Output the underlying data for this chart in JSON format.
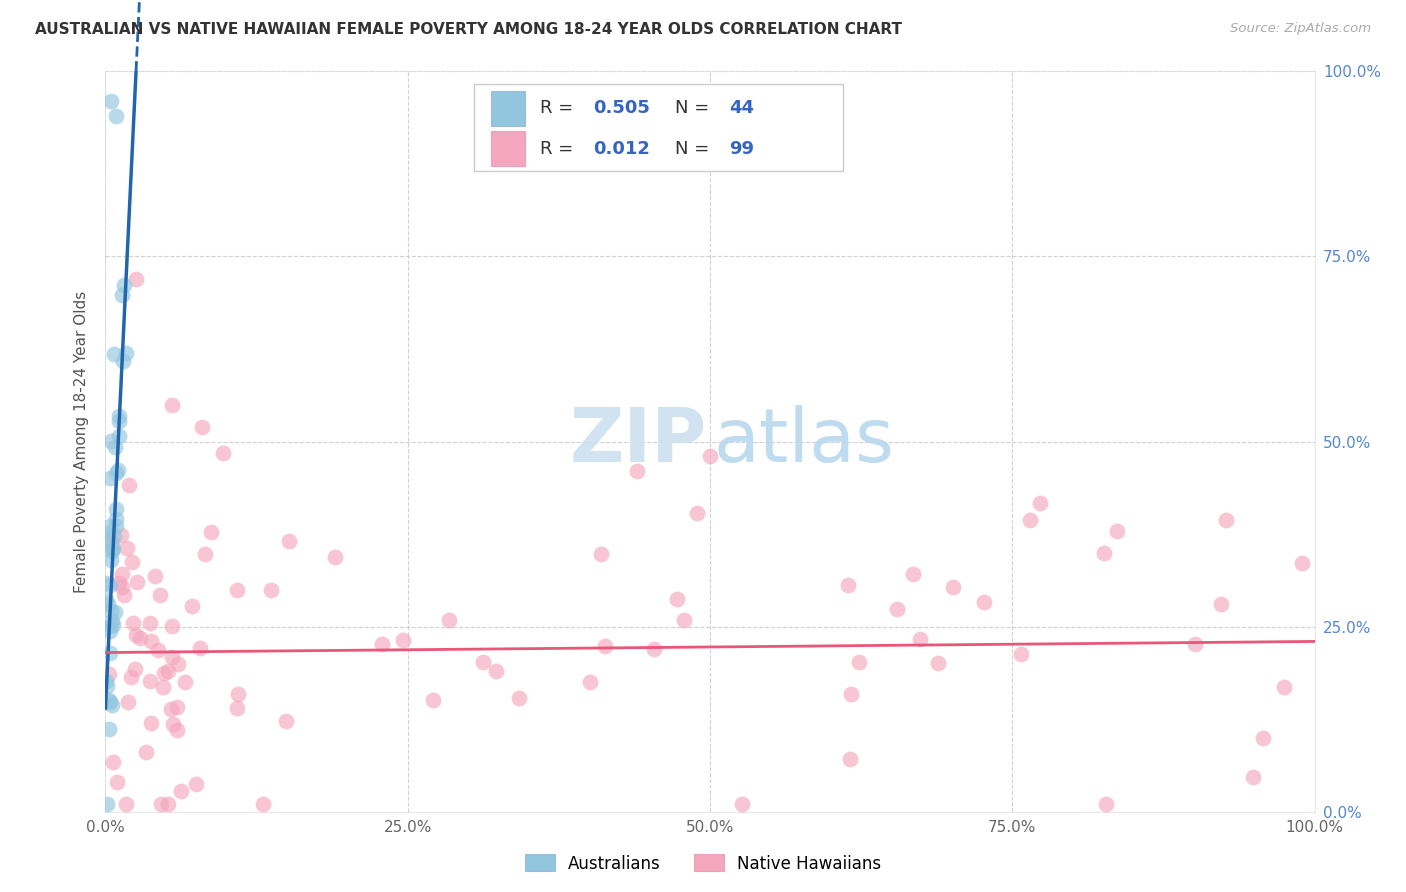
{
  "title": "AUSTRALIAN VS NATIVE HAWAIIAN FEMALE POVERTY AMONG 18-24 YEAR OLDS CORRELATION CHART",
  "source": "Source: ZipAtlas.com",
  "ylabel": "Female Poverty Among 18-24 Year Olds",
  "xlim": [
    0,
    1.0
  ],
  "ylim": [
    0,
    1.0
  ],
  "xticks": [
    0.0,
    0.25,
    0.5,
    0.75,
    1.0
  ],
  "xticklabels": [
    "0.0%",
    "25.0%",
    "50.0%",
    "75.0%",
    "100.0%"
  ],
  "yticks": [
    0.0,
    0.25,
    0.5,
    0.75,
    1.0
  ],
  "yticklabels_right": [
    "0.0%",
    "25.0%",
    "50.0%",
    "75.0%",
    "100.0%"
  ],
  "legend_R_aus": "0.505",
  "legend_N_aus": "44",
  "legend_R_haw": "0.012",
  "legend_N_haw": "99",
  "color_aus": "#92c5de",
  "color_haw": "#f4a6be",
  "color_line_aus": "#2166ac",
  "color_line_haw": "#e8567a",
  "color_watermark_zip": "#cce0f0",
  "color_watermark_atlas": "#b8d8ee",
  "background_color": "#ffffff",
  "grid_color": "#cccccc",
  "title_color": "#333333",
  "source_color": "#aaaaaa",
  "legend_text_color": "#333333",
  "legend_value_color": "#3465c0",
  "right_axis_color": "#5588cc",
  "aus_slope": 34.0,
  "aus_intercept": 0.14,
  "haw_slope": 0.015,
  "haw_intercept": 0.215
}
